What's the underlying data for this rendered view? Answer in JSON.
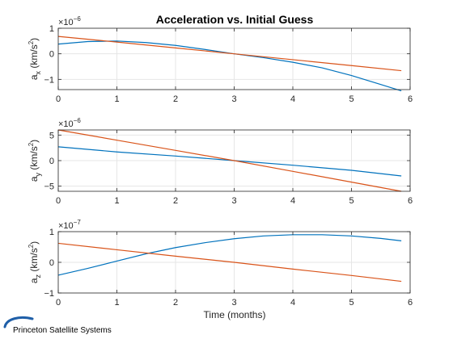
{
  "title": "Acceleration vs. Initial Guess",
  "xlabel": "Time (months)",
  "logo": {
    "text": "Princeton Satellite Systems",
    "color": "#1f5fa8"
  },
  "colors": {
    "series_1": "#0072bd",
    "series_2": "#d95319",
    "grid": "#e6e6e6",
    "axis": "#262626"
  },
  "chart_data": [
    {
      "type": "line",
      "ylabel_main": "a",
      "ylabel_sub": "x",
      "ylabel_unit_open": " (km/s",
      "ylabel_unit_close": ")",
      "multiplier": "×10",
      "exponent": "-6",
      "xlim": [
        0,
        6
      ],
      "ylim": [
        -1.4,
        1
      ],
      "xticks": [
        0,
        1,
        2,
        3,
        4,
        5,
        6
      ],
      "yticks": [
        -1,
        0,
        1
      ],
      "grid": true,
      "series": [
        {
          "x": [
            0,
            0.5,
            1,
            1.5,
            2,
            2.5,
            3,
            3.5,
            4,
            4.5,
            5,
            5.5,
            5.85
          ],
          "y": [
            0.38,
            0.48,
            0.5,
            0.44,
            0.33,
            0.17,
            0.0,
            -0.15,
            -0.33,
            -0.55,
            -0.85,
            -1.2,
            -1.45
          ]
        },
        {
          "x": [
            0,
            1,
            2,
            3,
            4,
            5,
            5.85
          ],
          "y": [
            0.68,
            0.46,
            0.23,
            0.0,
            -0.23,
            -0.46,
            -0.66
          ]
        }
      ]
    },
    {
      "type": "line",
      "ylabel_main": "a",
      "ylabel_sub": "y",
      "ylabel_unit_open": " (km/s",
      "ylabel_unit_close": ")",
      "multiplier": "×10",
      "exponent": "-6",
      "xlim": [
        0,
        6
      ],
      "ylim": [
        -6,
        6
      ],
      "xticks": [
        0,
        1,
        2,
        3,
        4,
        5,
        6
      ],
      "yticks": [
        -5,
        0,
        5
      ],
      "grid": true,
      "series": [
        {
          "x": [
            0,
            1,
            2,
            3,
            4,
            5,
            5.85
          ],
          "y": [
            2.7,
            1.7,
            0.9,
            0.0,
            -0.9,
            -1.9,
            -3.0
          ]
        },
        {
          "x": [
            0,
            1,
            2,
            3,
            4,
            5,
            5.85
          ],
          "y": [
            6.0,
            4.0,
            2.0,
            0.0,
            -2.1,
            -4.2,
            -6.0
          ]
        }
      ]
    },
    {
      "type": "line",
      "ylabel_main": "a",
      "ylabel_sub": "z",
      "ylabel_unit_open": " (km/s",
      "ylabel_unit_close": ")",
      "multiplier": "×10",
      "exponent": "-7",
      "xlim": [
        0,
        6
      ],
      "ylim": [
        -1,
        1
      ],
      "xticks": [
        0,
        1,
        2,
        3,
        4,
        5,
        6
      ],
      "yticks": [
        -1,
        0,
        1
      ],
      "grid": true,
      "series": [
        {
          "x": [
            0,
            0.5,
            1,
            1.5,
            2,
            2.5,
            3,
            3.5,
            4,
            4.5,
            5,
            5.5,
            5.85
          ],
          "y": [
            -0.42,
            -0.2,
            0.04,
            0.28,
            0.48,
            0.64,
            0.77,
            0.86,
            0.9,
            0.9,
            0.86,
            0.78,
            0.7
          ]
        },
        {
          "x": [
            0,
            1,
            2,
            3,
            4,
            5,
            5.85
          ],
          "y": [
            0.62,
            0.41,
            0.2,
            0.0,
            -0.22,
            -0.43,
            -0.62
          ]
        }
      ]
    }
  ]
}
